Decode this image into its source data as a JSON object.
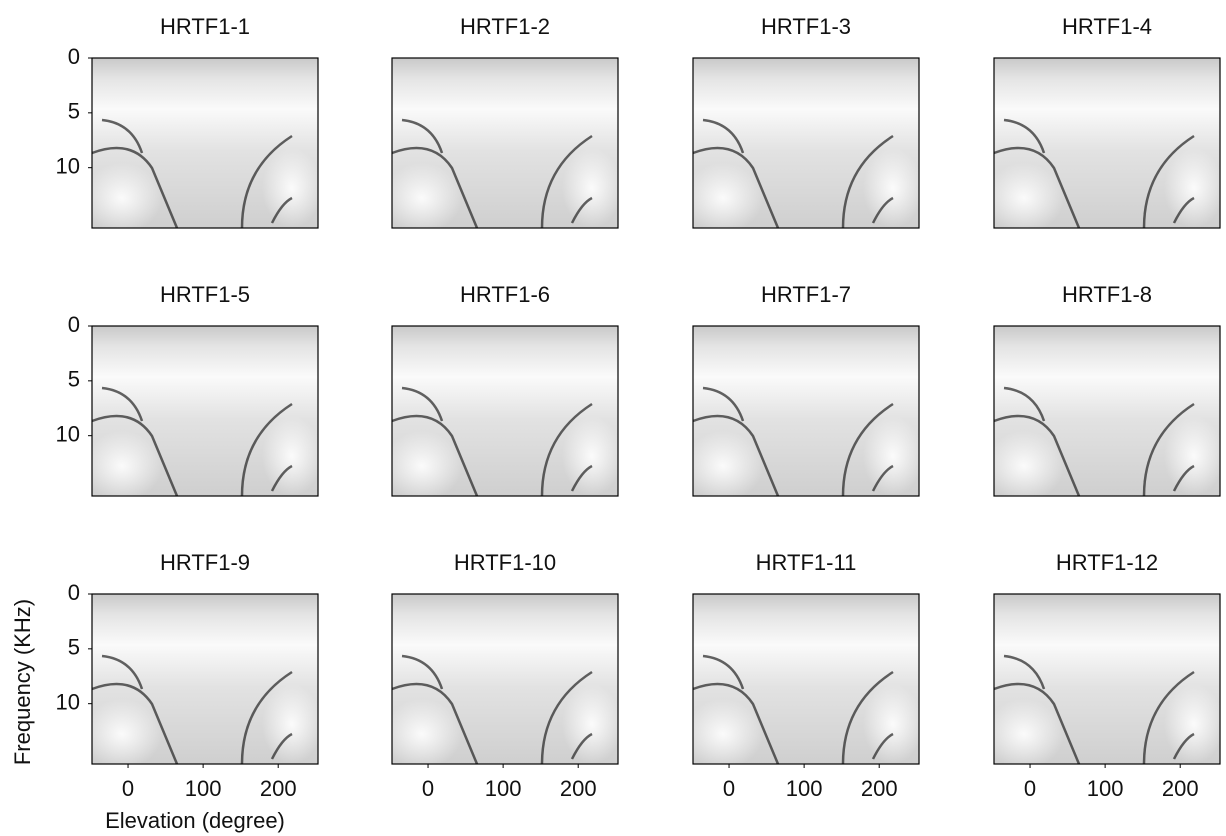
{
  "chart_data": [
    {
      "type": "heatmap",
      "title": "HRTF1-1",
      "ylim": [
        0,
        15.5
      ],
      "yticks": [
        0,
        5,
        10
      ]
    },
    {
      "type": "heatmap",
      "title": "HRTF1-2"
    },
    {
      "type": "heatmap",
      "title": "HRTF1-3"
    },
    {
      "type": "heatmap",
      "title": "HRTF1-4"
    },
    {
      "type": "heatmap",
      "title": "HRTF1-5",
      "ylim": [
        0,
        15.5
      ],
      "yticks": [
        0,
        5,
        10
      ]
    },
    {
      "type": "heatmap",
      "title": "HRTF1-6"
    },
    {
      "type": "heatmap",
      "title": "HRTF1-7"
    },
    {
      "type": "heatmap",
      "title": "HRTF1-8"
    },
    {
      "type": "heatmap",
      "title": "HRTF1-9",
      "ylim": [
        0,
        15.5
      ],
      "yticks": [
        0,
        5,
        10
      ],
      "xlim": [
        -48,
        253
      ],
      "xticks": [
        0,
        100,
        200
      ],
      "x_label": "Elevation (degree)",
      "y_label": "Frequency (KHz)"
    },
    {
      "type": "heatmap",
      "title": "HRTF1-10",
      "xlim": [
        -48,
        253
      ],
      "xticks": [
        0,
        100,
        200
      ]
    },
    {
      "type": "heatmap",
      "title": "HRTF1-11",
      "xlim": [
        -48,
        253
      ],
      "xticks": [
        0,
        100,
        200
      ]
    },
    {
      "type": "heatmap",
      "title": "HRTF1-12",
      "xlim": [
        -48,
        253
      ],
      "xticks": [
        0,
        100,
        200
      ]
    }
  ]
}
